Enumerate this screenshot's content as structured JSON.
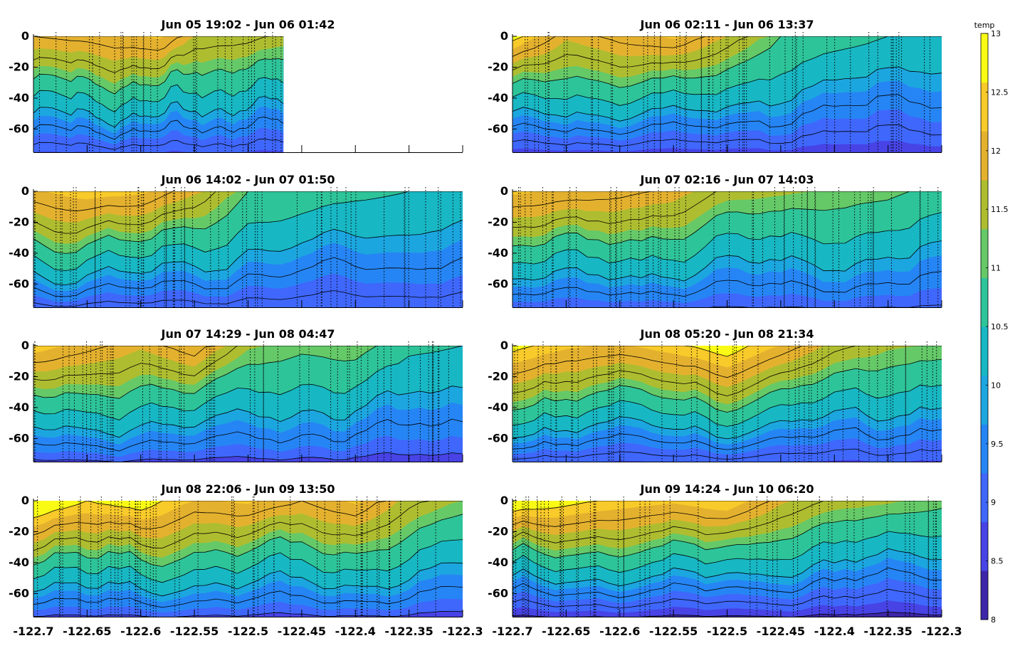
{
  "chart_data": {
    "type": "heatmap",
    "subtype": "filled-contour-sections",
    "layout": "4 rows x 2 columns",
    "x_range": [
      -122.7,
      -122.3
    ],
    "y_range": [
      -75,
      0
    ],
    "x_ticks": [
      "-122.7",
      "-122.65",
      "-122.6",
      "-122.55",
      "-122.5",
      "-122.45",
      "-122.4",
      "-122.35",
      "-122.3"
    ],
    "y_ticks": [
      "0",
      "-20",
      "-40",
      "-60"
    ],
    "colorbar": {
      "label": "temp",
      "range": [
        8,
        13
      ],
      "ticks": [
        "13",
        "12.5",
        "12",
        "11.5",
        "11",
        "10.5",
        "10",
        "9.5",
        "9",
        "8.5",
        "8"
      ],
      "colors": [
        "#3e26a8",
        "#4743e5",
        "#3f67fc",
        "#2685f4",
        "#1ca6e0",
        "#18b7c4",
        "#2ec49a",
        "#65c968",
        "#aebd30",
        "#e4b12f",
        "#f8ca2a",
        "#f9fb15"
      ]
    },
    "panels": [
      {
        "title": "Jun 05 19:02 - Jun 06 01:42",
        "x_extent": [
          -122.7,
          -122.467
        ],
        "surface_profile": [
          [
            -122.7,
            12.0
          ],
          [
            -122.65,
            12.1
          ],
          [
            -122.62,
            12.2
          ],
          [
            -122.58,
            12.3
          ],
          [
            -122.55,
            11.7
          ],
          [
            -122.5,
            11.6
          ],
          [
            -122.467,
            11.4
          ]
        ],
        "deep_temp": 8.6
      },
      {
        "title": "Jun 06 02:11 - Jun 06 13:37",
        "x_extent": [
          -122.7,
          -122.3
        ],
        "surface_profile": [
          [
            -122.7,
            12.6
          ],
          [
            -122.65,
            11.8
          ],
          [
            -122.6,
            12.1
          ],
          [
            -122.55,
            12.3
          ],
          [
            -122.5,
            11.7
          ],
          [
            -122.45,
            11.0
          ],
          [
            -122.4,
            10.7
          ],
          [
            -122.35,
            10.5
          ],
          [
            -122.3,
            10.4
          ]
        ],
        "deep_temp": 8.5
      },
      {
        "title": "Jun 06 14:02 - Jun 07 01:50",
        "x_extent": [
          -122.7,
          -122.3
        ],
        "surface_profile": [
          [
            -122.7,
            12.2
          ],
          [
            -122.65,
            12.4
          ],
          [
            -122.6,
            12.3
          ],
          [
            -122.55,
            11.8
          ],
          [
            -122.5,
            11.0
          ],
          [
            -122.45,
            10.8
          ],
          [
            -122.4,
            10.6
          ],
          [
            -122.35,
            10.5
          ],
          [
            -122.3,
            10.3
          ]
        ],
        "deep_temp": 8.7
      },
      {
        "title": "Jun 07 02:16 - Jun 07 14:03",
        "x_extent": [
          -122.7,
          -122.3
        ],
        "surface_profile": [
          [
            -122.7,
            12.3
          ],
          [
            -122.65,
            12.2
          ],
          [
            -122.6,
            12.1
          ],
          [
            -122.55,
            11.9
          ],
          [
            -122.5,
            11.4
          ],
          [
            -122.45,
            11.3
          ],
          [
            -122.4,
            11.2
          ],
          [
            -122.35,
            11.1
          ],
          [
            -122.3,
            10.8
          ]
        ],
        "deep_temp": 8.9
      },
      {
        "title": "Jun 07 14:29 - Jun 08 04:47",
        "x_extent": [
          -122.7,
          -122.3
        ],
        "surface_profile": [
          [
            -122.7,
            12.4
          ],
          [
            -122.65,
            12.1
          ],
          [
            -122.6,
            11.8
          ],
          [
            -122.55,
            12.2
          ],
          [
            -122.5,
            11.3
          ],
          [
            -122.45,
            11.1
          ],
          [
            -122.4,
            11.2
          ],
          [
            -122.35,
            10.6
          ],
          [
            -122.3,
            10.5
          ]
        ],
        "deep_temp": 8.8
      },
      {
        "title": "Jun 08 05:20 - Jun 08 21:34",
        "x_extent": [
          -122.7,
          -122.3
        ],
        "surface_profile": [
          [
            -122.7,
            12.6
          ],
          [
            -122.65,
            12.3
          ],
          [
            -122.6,
            12.2
          ],
          [
            -122.55,
            12.4
          ],
          [
            -122.5,
            12.7
          ],
          [
            -122.45,
            12.2
          ],
          [
            -122.4,
            11.6
          ],
          [
            -122.35,
            11.3
          ],
          [
            -122.3,
            11.2
          ]
        ],
        "deep_temp": 8.6
      },
      {
        "title": "Jun 08 22:06 - Jun 09 13:50",
        "x_extent": [
          -122.7,
          -122.3
        ],
        "surface_profile": [
          [
            -122.7,
            12.9
          ],
          [
            -122.65,
            12.5
          ],
          [
            -122.6,
            12.7
          ],
          [
            -122.55,
            12.2
          ],
          [
            -122.5,
            12.3
          ],
          [
            -122.45,
            12.0
          ],
          [
            -122.4,
            12.3
          ],
          [
            -122.35,
            11.6
          ],
          [
            -122.3,
            11.2
          ]
        ],
        "deep_temp": 8.8
      },
      {
        "title": "Jun 09 14:24 - Jun 10 06:20",
        "x_extent": [
          -122.7,
          -122.3
        ],
        "surface_profile": [
          [
            -122.7,
            12.8
          ],
          [
            -122.65,
            12.6
          ],
          [
            -122.6,
            12.4
          ],
          [
            -122.55,
            12.3
          ],
          [
            -122.5,
            12.5
          ],
          [
            -122.45,
            11.8
          ],
          [
            -122.4,
            11.4
          ],
          [
            -122.35,
            11.3
          ],
          [
            -122.3,
            11.1
          ]
        ],
        "deep_temp": 8.3
      }
    ]
  }
}
